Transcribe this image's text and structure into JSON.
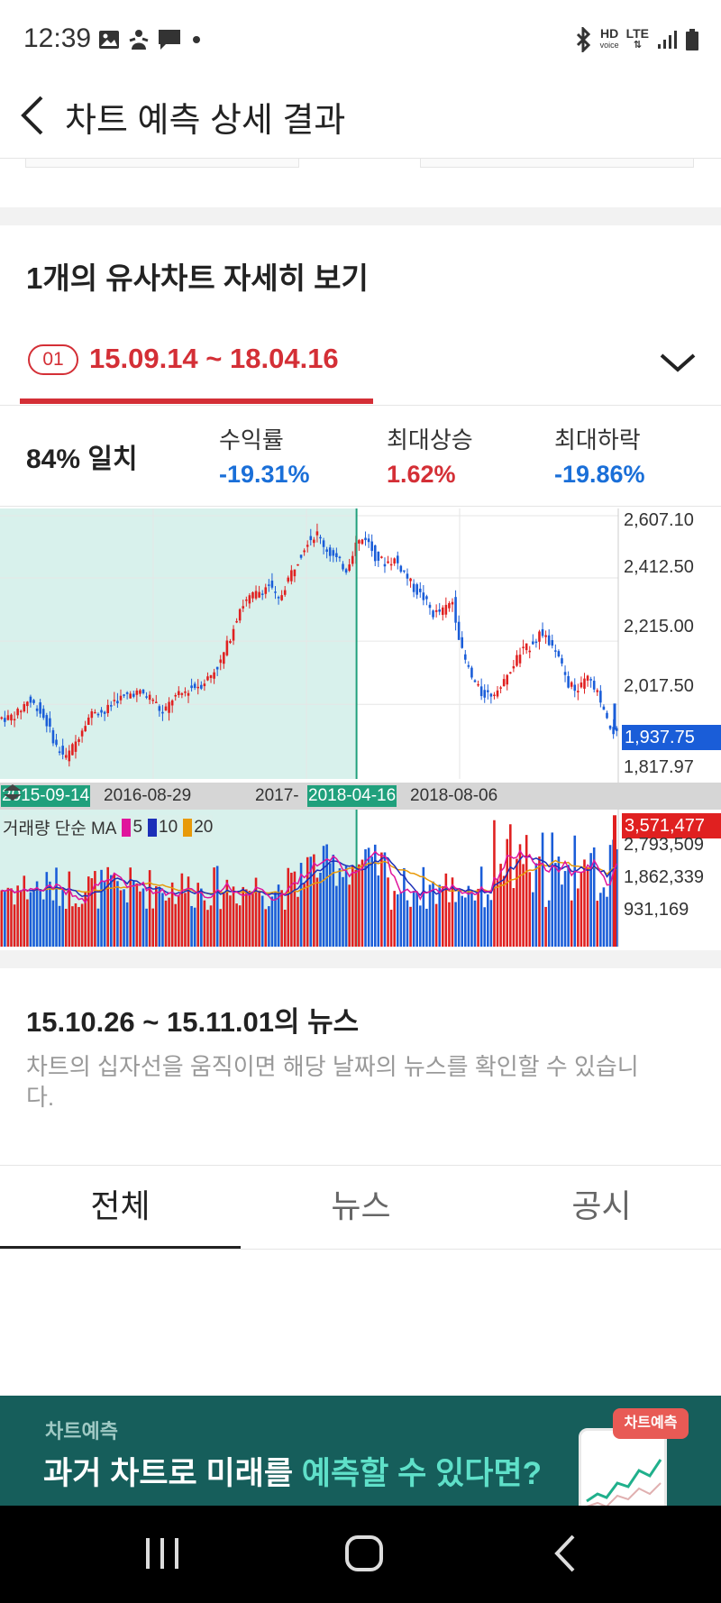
{
  "status_bar": {
    "time": "12:39",
    "hd_label": "HD",
    "voice_label": "voice",
    "lte_label": "LTE",
    "left_icons": [
      "gallery-icon",
      "person-icon",
      "message-icon",
      "dot-icon"
    ],
    "right_icons": [
      "bluetooth-icon",
      "signal-icon",
      "battery-icon"
    ]
  },
  "header": {
    "title": "차트 예측 상세 결과"
  },
  "section": {
    "title": "1개의 유사차트 자세히 보기"
  },
  "period": {
    "badge": "01",
    "range": "15.09.14 ~ 18.04.16"
  },
  "stats": {
    "match": "84% 일치",
    "return_label": "수익률",
    "return_value": "-19.31%",
    "max_rise_label": "최대상승",
    "max_rise_value": "1.62%",
    "max_fall_label": "최대하락",
    "max_fall_value": "-19.86%"
  },
  "colors": {
    "up": "#e02020",
    "down": "#1a5dd8",
    "highlight": "#d42f36",
    "match_region": "#d8f1ec",
    "ma5": "#e0149c",
    "ma10": "#1c2fb8",
    "ma20": "#e89a0a",
    "banner": "#165e5b"
  },
  "chart": {
    "price_ticks": [
      "2,607.10",
      "2,412.50",
      "2,215.00",
      "2,017.50",
      "1,817.97"
    ],
    "current_price": "1,937.75",
    "dates": [
      "2015-09-14",
      "2016-08-29",
      "2017-",
      "2018-04-16",
      "2018-08-06"
    ],
    "volume_legend_label": "거래량 단순 MA",
    "ma_periods": [
      "5",
      "10",
      "20"
    ],
    "volume_ticks": [
      "2,793,509",
      "1,862,339",
      "931,169"
    ],
    "current_volume": "3,571,477"
  },
  "chart_data": {
    "type": "line",
    "x_labels": [
      "2015-09-14",
      "2016-08-29",
      "2017-",
      "2018-04-16",
      "2018-08-06"
    ],
    "price": {
      "series": [
        {
          "values": [
            1975,
            1990,
            2030,
            2010,
            1960,
            1885,
            1850,
            1900,
            1965,
            2000,
            1990,
            2030,
            2040,
            2055,
            2050,
            2035,
            1985,
            2035,
            2050,
            2070,
            2080,
            2110,
            2150,
            2230,
            2320,
            2350,
            2370,
            2390,
            2340,
            2410,
            2470,
            2530,
            2550,
            2500,
            2470,
            2440,
            2520,
            2540,
            2480,
            2460,
            2470,
            2430,
            2380,
            2350,
            2300,
            2310,
            2340,
            2180,
            2100,
            2050,
            2050,
            2070,
            2120,
            2180,
            2200,
            2240,
            2210,
            2160,
            2080,
            2060,
            2100,
            2050,
            1960,
            1920
          ],
          "end_value": 1937.75
        }
      ],
      "ylim": [
        1817.97,
        2607.1
      ],
      "match_end_index": 36
    },
    "volume": {
      "ma5_label": "5",
      "ma10_label": "10",
      "ma20_label": "20",
      "ylim": [
        0,
        3725000
      ],
      "last_value": 3571477
    }
  },
  "news": {
    "title": "15.10.26 ~ 15.11.01의 뉴스",
    "description": "차트의 십자선을 움직이면 해당 날짜의 뉴스를 확인할 수 있습니다."
  },
  "tabs": [
    "전체",
    "뉴스",
    "공시"
  ],
  "banner": {
    "small": "차트예측",
    "main_prefix": "과거 차트로 미래를 ",
    "main_accent": "예측할 수 있다면?",
    "badge": "차트예측"
  }
}
